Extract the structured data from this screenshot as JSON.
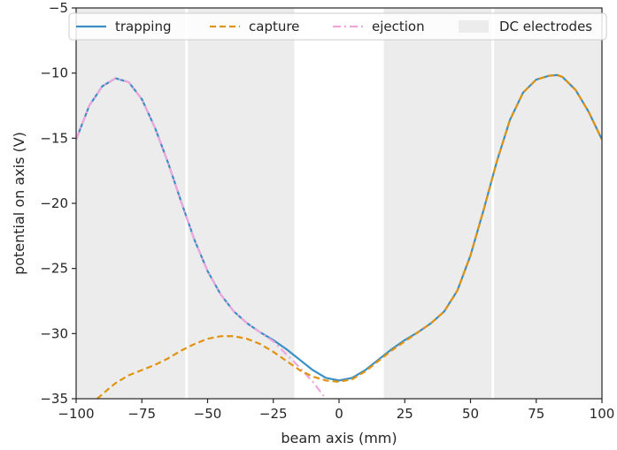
{
  "chart_data": {
    "type": "line",
    "title": "",
    "xlabel": "beam axis (mm)",
    "ylabel": "potential on axis (V)",
    "xlim": [
      -100,
      100
    ],
    "ylim": [
      -35,
      -5
    ],
    "xticks": [
      -100,
      -75,
      -50,
      -25,
      0,
      25,
      50,
      75,
      100
    ],
    "yticks": [
      -35,
      -30,
      -25,
      -20,
      -15,
      -10,
      -5
    ],
    "x_tick_labels": [
      "−100",
      "−75",
      "−50",
      "−25",
      "0",
      "25",
      "50",
      "75",
      "100"
    ],
    "y_tick_labels": [
      "−35",
      "−30",
      "−25",
      "−20",
      "−15",
      "−10",
      "−5"
    ],
    "grid": false,
    "legend": "top",
    "background_regions": {
      "name": "DC electrodes",
      "color": "#ececec",
      "ranges": [
        [
          -100,
          -58.5
        ],
        [
          -57.5,
          -17
        ],
        [
          17,
          58
        ],
        [
          59,
          100
        ]
      ]
    },
    "series": [
      {
        "name": "trapping",
        "color": "#3a8fc4",
        "style": "solid",
        "x": [
          -100,
          -95,
          -90,
          -85,
          -80,
          -75,
          -70,
          -65,
          -60,
          -55,
          -50,
          -45,
          -40,
          -35,
          -30,
          -25,
          -20,
          -15,
          -10,
          -5,
          0,
          5,
          10,
          15,
          20,
          25,
          30,
          35,
          40,
          45,
          50,
          55,
          60,
          65,
          70,
          75,
          80,
          83,
          85,
          90,
          95,
          100
        ],
        "y": [
          -15.1,
          -12.5,
          -11.0,
          -10.4,
          -10.7,
          -12.0,
          -14.2,
          -16.9,
          -19.9,
          -22.8,
          -25.2,
          -27.0,
          -28.3,
          -29.2,
          -29.9,
          -30.5,
          -31.2,
          -32.0,
          -32.8,
          -33.4,
          -33.6,
          -33.4,
          -32.8,
          -32.0,
          -31.2,
          -30.5,
          -29.9,
          -29.2,
          -28.3,
          -26.7,
          -24.0,
          -20.5,
          -16.8,
          -13.6,
          -11.5,
          -10.5,
          -10.2,
          -10.15,
          -10.3,
          -11.3,
          -13.0,
          -15.1
        ]
      },
      {
        "name": "capture",
        "color": "#e0930e",
        "style": "dashed",
        "x": [
          -92,
          -88,
          -85,
          -80,
          -75,
          -70,
          -65,
          -60,
          -55,
          -50,
          -45,
          -40,
          -35,
          -30,
          -25,
          -20,
          -15,
          -10,
          -5,
          0,
          5,
          10,
          15,
          20,
          25,
          30,
          35,
          40,
          45,
          50,
          55,
          60,
          65,
          70,
          75,
          80,
          83,
          85,
          90,
          95,
          100
        ],
        "y": [
          -35.0,
          -34.3,
          -33.8,
          -33.2,
          -32.8,
          -32.4,
          -31.9,
          -31.3,
          -30.8,
          -30.4,
          -30.2,
          -30.2,
          -30.4,
          -30.8,
          -31.4,
          -32.1,
          -32.8,
          -33.3,
          -33.6,
          -33.7,
          -33.5,
          -32.9,
          -32.1,
          -31.3,
          -30.6,
          -29.9,
          -29.2,
          -28.3,
          -26.7,
          -24.0,
          -20.5,
          -16.8,
          -13.6,
          -11.5,
          -10.5,
          -10.2,
          -10.15,
          -10.3,
          -11.3,
          -13.0,
          -15.1
        ]
      },
      {
        "name": "ejection",
        "color": "#f0a6dc",
        "style": "dashdot",
        "x": [
          -100,
          -95,
          -90,
          -85,
          -80,
          -75,
          -70,
          -65,
          -60,
          -55,
          -50,
          -45,
          -40,
          -35,
          -30,
          -25,
          -20,
          -15,
          -10,
          -5
        ],
        "y": [
          -15.1,
          -12.5,
          -11.0,
          -10.4,
          -10.7,
          -12.0,
          -14.2,
          -16.9,
          -19.9,
          -22.8,
          -25.2,
          -27.0,
          -28.3,
          -29.2,
          -29.9,
          -30.6,
          -31.6,
          -32.6,
          -33.7,
          -35.0
        ]
      }
    ]
  }
}
